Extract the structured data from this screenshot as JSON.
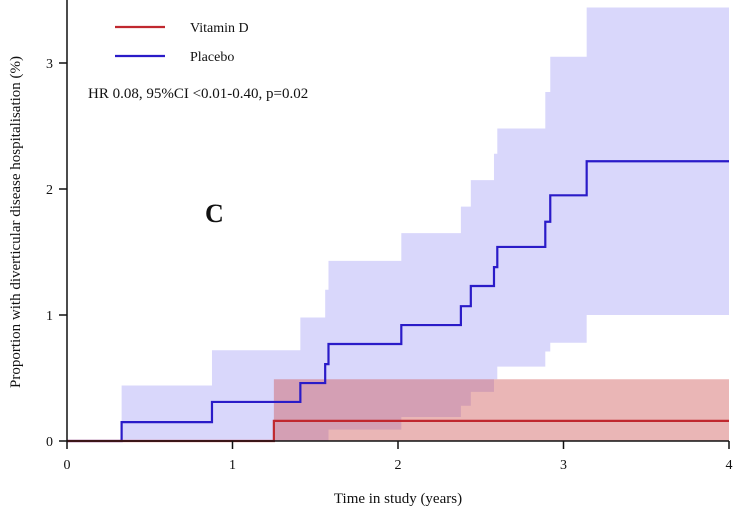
{
  "chart_data": {
    "type": "line",
    "subtype": "kaplan-meier cumulative incidence with 95% CI bands",
    "panel_label": "C",
    "xlabel": "Time in study (years)",
    "ylabel": "Proportion with diverticular disease hospitalisation (%)",
    "xlim": [
      0,
      4
    ],
    "ylim": [
      0,
      3.45
    ],
    "xticks": [
      "0",
      "1",
      "2",
      "3",
      "4"
    ],
    "yticks": [
      "0",
      "1",
      "2",
      "3"
    ],
    "grid": false,
    "legend_placement": "top-left",
    "annotation": "HR 0.08, 95%CI <0.01-0.40, p=0.02",
    "series": [
      {
        "name": "Vitamin D",
        "line_color": "#c0282f",
        "band_color": "#cd5050",
        "times": [
          0,
          1.25
        ],
        "values": [
          0,
          0.16
        ],
        "ci_upper": [
          0,
          0.49
        ],
        "ci_lower": [
          0,
          0
        ]
      },
      {
        "name": "Placebo",
        "line_color": "#2a1bc8",
        "band_color": "#d9d7fb",
        "times": [
          0,
          0.33,
          0.876,
          1.41,
          1.56,
          1.58,
          2.02,
          2.38,
          2.44,
          2.58,
          2.6,
          2.89,
          2.92,
          3.14
        ],
        "values": [
          0,
          0.15,
          0.31,
          0.46,
          0.61,
          0.77,
          0.92,
          1.07,
          1.23,
          1.38,
          1.54,
          1.74,
          1.95,
          2.22
        ],
        "ci_upper": [
          0,
          0.44,
          0.72,
          0.98,
          1.2,
          1.43,
          1.65,
          1.86,
          2.07,
          2.28,
          2.48,
          2.77,
          3.05,
          3.44
        ],
        "ci_lower": [
          0,
          0,
          0,
          0,
          0,
          0.09,
          0.19,
          0.28,
          0.39,
          0.49,
          0.59,
          0.71,
          0.78,
          1.0
        ]
      }
    ]
  }
}
